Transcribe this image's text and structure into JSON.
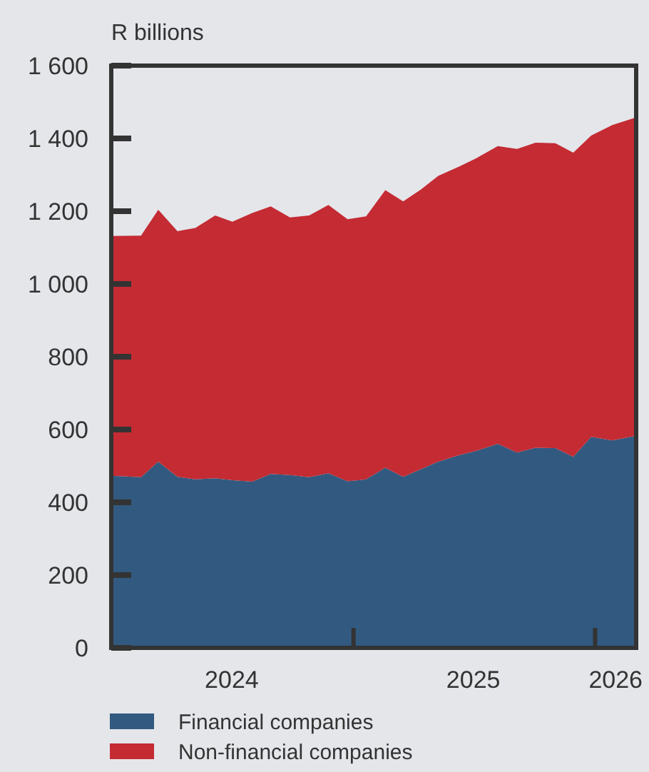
{
  "chart_data": {
    "type": "area",
    "stacked": true,
    "ylabel": "R billions",
    "x": [
      "2024-01-01",
      "2024-02-15",
      "2024-03-12",
      "2024-04-10",
      "2024-05-07",
      "2024-06-06",
      "2024-07-02",
      "2024-08-01",
      "2024-08-29",
      "2024-09-27",
      "2024-10-26",
      "2024-11-24",
      "2024-12-23",
      "2025-01-20",
      "2025-02-18",
      "2025-03-17",
      "2025-04-13",
      "2025-05-09",
      "2025-06-10",
      "2025-07-05",
      "2025-08-07",
      "2025-09-05",
      "2025-10-03",
      "2025-11-02",
      "2025-11-29",
      "2025-12-26",
      "2026-01-27",
      "2026-03-04"
    ],
    "series": [
      {
        "name": "Financial companies",
        "color": "#325a80",
        "values": [
          473,
          469,
          512,
          470,
          463,
          466,
          461,
          457,
          478,
          475,
          469,
          480,
          458,
          463,
          495,
          470,
          491,
          512,
          530,
          541,
          561,
          537,
          550,
          549,
          525,
          580,
          570,
          583
        ]
      },
      {
        "name": "Non-financial companies",
        "color": "#c42b33",
        "values": [
          659,
          664,
          692,
          675,
          691,
          722,
          710,
          738,
          735,
          708,
          719,
          737,
          720,
          723,
          763,
          757,
          769,
          785,
          793,
          804,
          818,
          834,
          838,
          838,
          836,
          828,
          867,
          875
        ]
      }
    ],
    "xlim": [
      "2024-01-01",
      "2026-03-04"
    ],
    "xticks": [
      {
        "value": "2024-07-01",
        "label": "2024"
      },
      {
        "value": "2025-01-01",
        "label": null
      },
      {
        "value": "2025-07-01",
        "label": "2025"
      },
      {
        "value": "2026-01-01",
        "label": null
      },
      {
        "value": "2026-02-01",
        "label": "2026"
      }
    ],
    "ylim": [
      0,
      1600
    ],
    "yticks": [
      0,
      200,
      400,
      600,
      800,
      {
        "value": 1000,
        "label": "1 000"
      },
      {
        "value": 1200,
        "label": "1 200"
      },
      {
        "value": 1400,
        "label": "1 400"
      },
      {
        "value": 1600,
        "label": "1 600"
      }
    ],
    "grid": false,
    "legend": "bottom"
  }
}
